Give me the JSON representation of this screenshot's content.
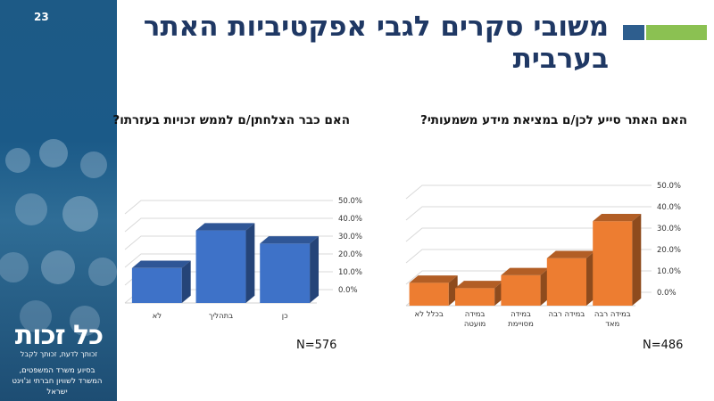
{
  "slide": {
    "number": "23"
  },
  "title": "משובי סקרים לגבי אפקטיביות האתר בערבית",
  "logo": {
    "name": "כל זכות",
    "tagline": "זכותך לדעת, זכותך לקבל"
  },
  "sponsor": "בסיוע משרד המשפטים, המשרד לשוויון חברתי וג'וינט ישראל",
  "colors": {
    "accent_dark": "#2e5e8e",
    "accent_green": "#8bc152",
    "title": "#1f3864",
    "bar_blue": "#3e72c8",
    "bar_orange": "#ed7d31"
  },
  "chart_data": [
    {
      "id": "left",
      "type": "bar",
      "title": "האם כבר הצלחתן/ם לממש זכויות בעזרתו?",
      "categories": [
        "לא",
        "בתהליך",
        "כן"
      ],
      "values": [
        19.6,
        40.7,
        33.3
      ],
      "ylim": [
        0,
        50
      ],
      "yticks": [
        "0.0%",
        "10.0%",
        "20.0%",
        "30.0%",
        "40.0%",
        "50.0%"
      ],
      "n_label": "N=576",
      "color": "#3e72c8"
    },
    {
      "id": "right",
      "type": "bar",
      "title": "האם האתר סייע לכן/ם במציאת מידע משמעותי?",
      "categories": [
        "בכלל לא",
        "במידה מועטה",
        "במידה מסויימת",
        "במידה רבה",
        "במידה רבה מאד"
      ],
      "values": [
        10.7,
        8.2,
        14.2,
        22.2,
        39.5
      ],
      "ylim": [
        0,
        50
      ],
      "yticks": [
        "0.0%",
        "10.0%",
        "20.0%",
        "30.0%",
        "40.0%",
        "50.0%"
      ],
      "n_label": "N=486",
      "color": "#ed7d31"
    }
  ]
}
